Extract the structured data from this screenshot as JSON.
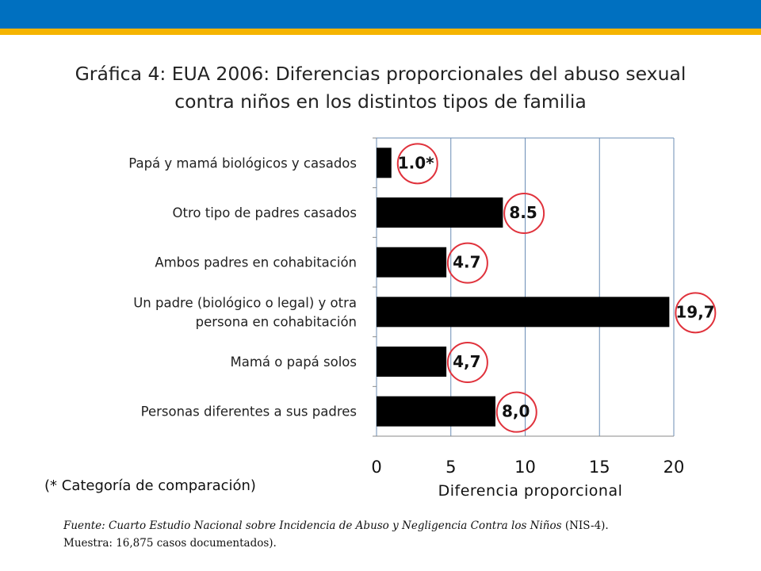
{
  "theme": {
    "header_color": "#0070C0",
    "accent_color": "#F5B400",
    "bar_color": "#000000",
    "circle_color": "#E0323C",
    "axis_color": "#6B8DB5"
  },
  "title_lines": [
    "Gráfica 4: EUA 2006: Diferencias proporcionales del abuso sexual",
    "contra niños en los distintos tipos de familia"
  ],
  "note": "(* Categoría de comparación)",
  "source": {
    "line1_italic": "Fuente: Cuarto Estudio Nacional sobre Incidencia de Abuso y Negligencia Contra los Niños",
    "line1_rest": " (NIS-4).",
    "line2": "Muestra: 16,875 casos documentados)."
  },
  "chart_data": {
    "type": "bar",
    "orientation": "horizontal",
    "xlabel": "Diferencia proporcional",
    "xlim": [
      0,
      20
    ],
    "xticks": [
      0,
      5,
      10,
      15,
      20
    ],
    "x_grid": true,
    "categories": [
      [
        "Papá y mamá biológicos y casados"
      ],
      [
        "Otro tipo de padres casados"
      ],
      [
        "Ambos padres en cohabitación"
      ],
      [
        "Un padre (biológico o legal) y otra",
        "persona en cohabitación"
      ],
      [
        "Mamá o papá solos"
      ],
      [
        "Personas diferentes a sus padres"
      ]
    ],
    "series": [
      {
        "values": [
          1.0,
          8.5,
          4.7,
          19.7,
          4.7,
          8.0
        ],
        "data_labels": [
          "1.0*",
          "8.5",
          "4.7",
          "19,7",
          "4,7",
          "8,0"
        ]
      }
    ],
    "highlighted_labels": "circled"
  }
}
